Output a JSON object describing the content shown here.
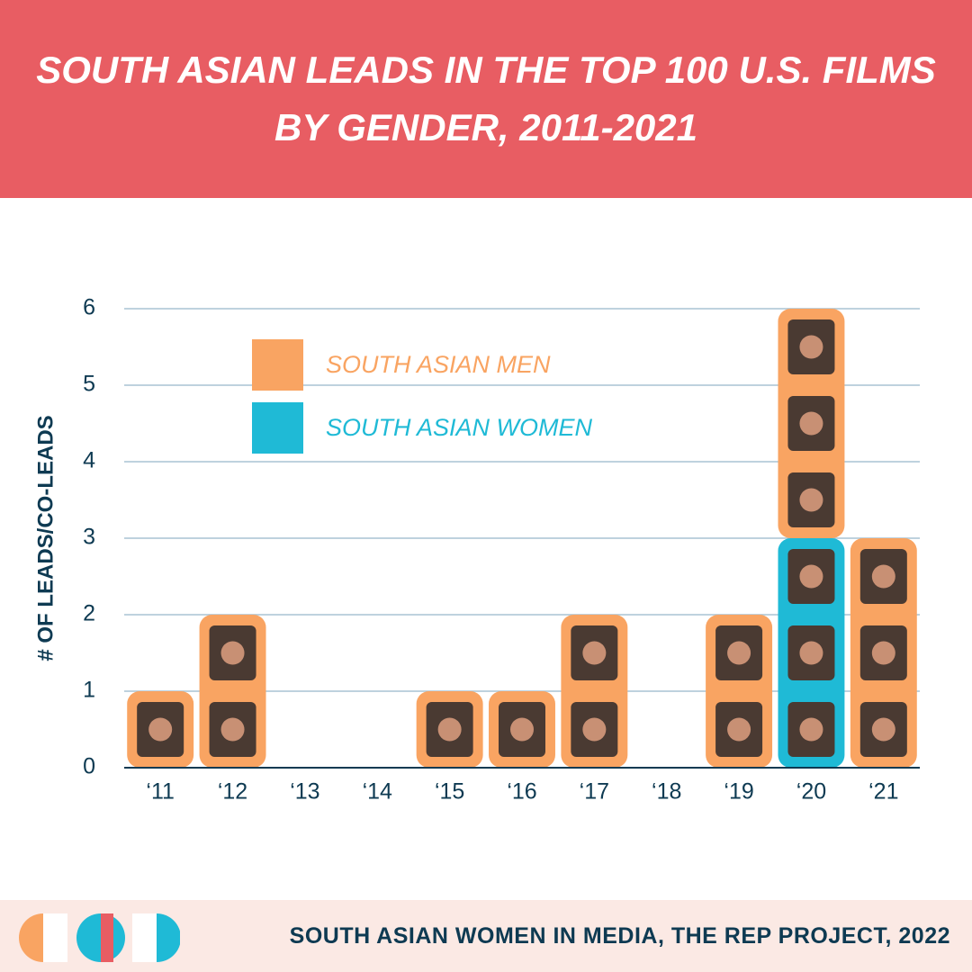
{
  "chart_data": {
    "type": "bar",
    "stacked": true,
    "title": "SOUTH ASIAN LEADS IN THE TOP 100 U.S. FILMS BY GENDER, 2011-2021",
    "y_label": "# OF LEADS/CO-LEADS",
    "categories": [
      "‘11",
      "‘12",
      "‘13",
      "‘14",
      "‘15",
      "‘16",
      "‘17",
      "‘18",
      "‘19",
      "‘20",
      "‘21"
    ],
    "series": [
      {
        "name": "SOUTH ASIAN MEN",
        "color": "#f9a462",
        "values": [
          1,
          2,
          0,
          0,
          1,
          1,
          2,
          0,
          2,
          3,
          3
        ]
      },
      {
        "name": "SOUTH ASIAN WOMEN",
        "color": "#1fbad6",
        "values": [
          0,
          0,
          0,
          0,
          0,
          0,
          0,
          0,
          0,
          3,
          0
        ]
      }
    ],
    "ylim": [
      0,
      6
    ],
    "yticks": [
      0,
      1,
      2,
      3,
      4,
      5,
      6
    ],
    "grid": true,
    "source": "SOUTH ASIAN WOMEN IN MEDIA, THE REP PROJECT, 2022"
  }
}
